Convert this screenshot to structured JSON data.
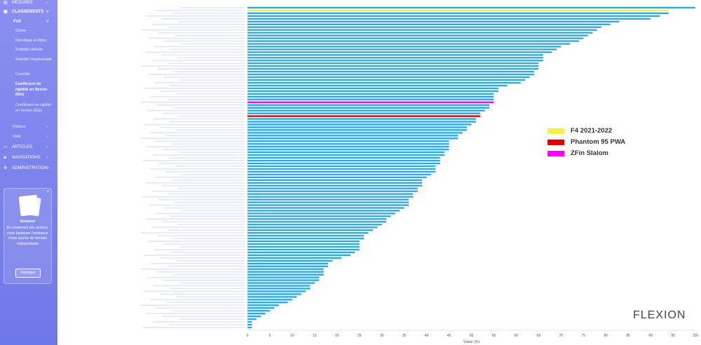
{
  "sidebar": {
    "items": [
      {
        "icon": "ruler-icon",
        "label": "MESURES",
        "chevron": "›"
      },
      {
        "icon": "bar-chart-icon",
        "label": "CLASSEMENTS",
        "chevron": "˅"
      },
      {
        "icon": "",
        "label": "Foil",
        "chevron": "˅"
      }
    ],
    "sub_items": [
      "Glisse",
      "Décollage & Minis",
      "Stabilité latérale",
      "Stabilité longitudinale",
      "Contrôle",
      "Coefficient de rigidité en flexion (EIx)",
      "Coefficient de rigidité en torsion (GIp)"
    ],
    "more": [
      {
        "label": "Flotteur",
        "chevron": "›"
      },
      {
        "label": "Voile",
        "chevron": "›"
      }
    ],
    "sections": [
      {
        "icon": "document-icon",
        "label": "ARTICLES",
        "chevron": "›"
      },
      {
        "icon": "compass-icon",
        "label": "NAVIGATIONS",
        "chevron": "›"
      },
      {
        "icon": "gear-icon",
        "label": "ADMINISTRATION",
        "chevron": "›"
      }
    ]
  },
  "promo": {
    "close": "×",
    "title": "Soutenir",
    "text": "En soutenant nos actions, vous favorisez l'existance d'une source de donnée indépendante",
    "button": "Participer"
  },
  "chart_data": {
    "type": "bar",
    "orientation": "horizontal",
    "xlabel": "Valeur (%)",
    "xlim": [
      0,
      100
    ],
    "xticks": [
      0,
      5,
      10,
      15,
      20,
      25,
      30,
      35,
      40,
      45,
      50,
      55,
      60,
      65,
      70,
      75,
      80,
      85,
      90,
      95,
      100
    ],
    "bar_color": "#29abe2",
    "values": [
      100,
      94,
      94,
      92,
      90,
      83,
      81,
      79,
      78,
      77,
      76,
      75,
      74,
      72,
      70,
      69,
      68,
      66,
      66,
      66,
      65,
      65,
      65,
      64,
      64,
      63,
      62,
      61,
      58,
      56,
      56,
      55,
      55,
      55,
      55,
      54,
      54,
      53,
      52,
      52,
      51,
      51,
      50,
      49,
      49,
      48,
      47,
      47,
      45,
      45,
      45,
      45,
      44,
      44,
      43,
      43,
      43,
      42,
      42,
      42,
      41,
      40,
      39,
      39,
      39,
      38,
      38,
      37,
      37,
      36,
      36,
      36,
      35,
      34,
      33,
      32,
      31,
      31,
      30,
      29,
      28,
      27,
      26,
      26,
      25,
      25,
      25,
      25,
      24,
      23,
      21,
      19,
      18,
      18,
      17,
      17,
      17,
      16,
      16,
      15,
      14,
      14,
      13,
      12,
      11,
      10,
      9,
      7,
      6,
      5,
      4,
      3,
      2,
      1,
      1,
      1
    ],
    "highlights": [
      {
        "index": 1,
        "color": "#f5f04a"
      },
      {
        "index": 34,
        "color": "#ff00ff"
      },
      {
        "index": 39,
        "color": "#e00000"
      }
    ],
    "legend_position": "right",
    "legend": [
      {
        "label": "F4 2021-2022",
        "color": "#f5f04a"
      },
      {
        "label": "Phantom 95 PWA",
        "color": "#e00000"
      },
      {
        "label": "ZFin Slalom",
        "color": "#ff00ff"
      }
    ]
  },
  "watermark": "FLEXION"
}
